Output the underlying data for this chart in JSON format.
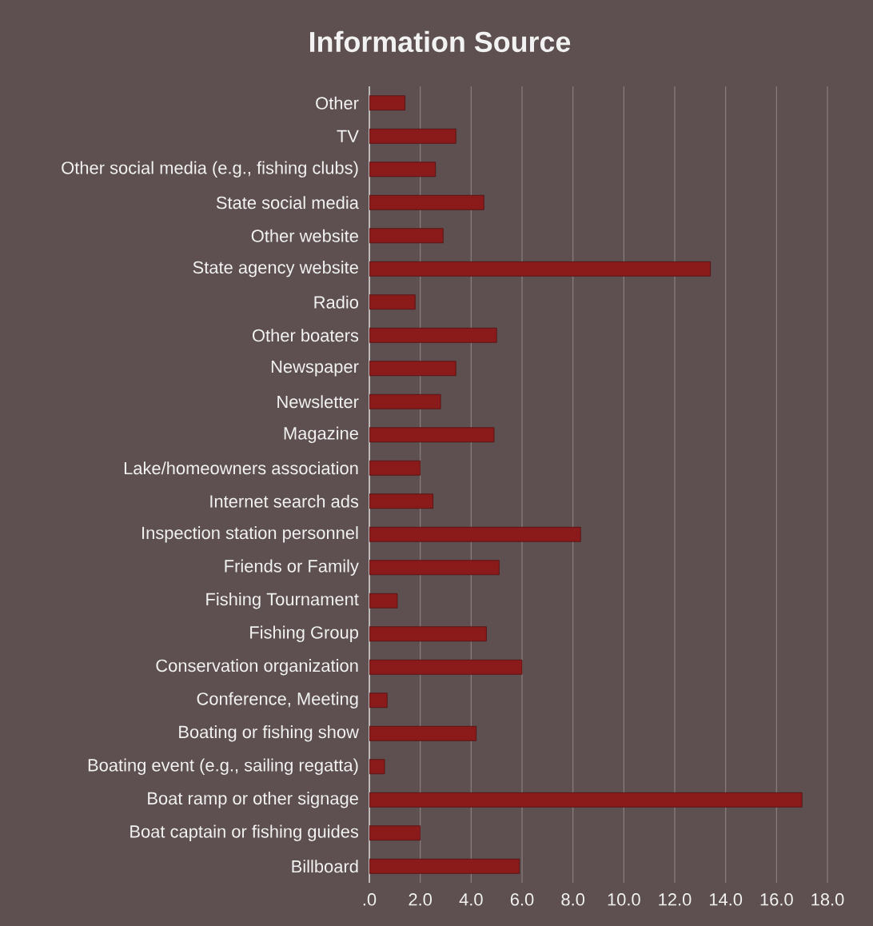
{
  "chart_data": {
    "type": "bar",
    "orientation": "horizontal",
    "title": "Information Source",
    "categories": [
      "Other",
      "TV",
      "Other social media (e.g., fishing clubs)",
      "State social media",
      "Other website",
      "State agency website",
      "Radio",
      "Other boaters",
      "Newspaper",
      "Newsletter",
      "Magazine",
      "Lake/homeowners association",
      "Internet search ads",
      "Inspection station personnel",
      "Friends or Family",
      "Fishing Tournament",
      "Fishing Group",
      "Conservation organization",
      "Conference, Meeting",
      "Boating or fishing show",
      "Boating event (e.g., sailing regatta)",
      "Boat ramp or other signage",
      "Boat captain or fishing guides",
      "Billboard"
    ],
    "values": [
      1.4,
      3.4,
      2.6,
      4.5,
      2.9,
      13.4,
      1.8,
      5.0,
      3.4,
      2.8,
      4.9,
      2.0,
      2.5,
      8.3,
      5.1,
      1.1,
      4.6,
      6.0,
      0.7,
      4.2,
      0.6,
      17.0,
      2.0,
      5.9
    ],
    "color": "#8b1a1a",
    "xlim": [
      0,
      18
    ],
    "xticks": [
      {
        "value": 0,
        "label": ".0"
      },
      {
        "value": 2,
        "label": "2.0"
      },
      {
        "value": 4,
        "label": "4.0"
      },
      {
        "value": 6,
        "label": "6.0"
      },
      {
        "value": 8,
        "label": "8.0"
      },
      {
        "value": 10,
        "label": "10.0"
      },
      {
        "value": 12,
        "label": "12.0"
      },
      {
        "value": 14,
        "label": "14.0"
      },
      {
        "value": 16,
        "label": "16.0"
      },
      {
        "value": 18,
        "label": "18.0"
      }
    ],
    "grid": "x"
  }
}
